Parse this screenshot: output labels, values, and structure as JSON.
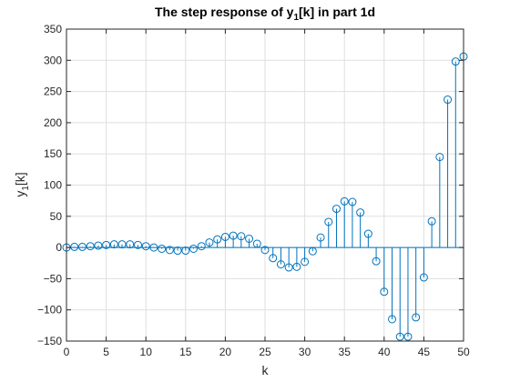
{
  "chart_data": {
    "type": "scatter",
    "subtype": "stem",
    "title": {
      "main": "The step response of y",
      "sub": "1",
      "rest": "[k] in part 1d"
    },
    "xlabel": "k",
    "ylabel": {
      "main": "y",
      "sub": "1",
      "rest": "[k]"
    },
    "xlim": [
      0,
      50
    ],
    "ylim": [
      -150,
      350
    ],
    "xticks": [
      0,
      5,
      10,
      15,
      20,
      25,
      30,
      35,
      40,
      45,
      50
    ],
    "yticks": [
      -150,
      -100,
      -50,
      0,
      50,
      100,
      150,
      200,
      250,
      300,
      350
    ],
    "grid": true,
    "color": "#0072BD",
    "series": [
      {
        "x": [
          0,
          1,
          2,
          3,
          4,
          5,
          6,
          7,
          8,
          9,
          10,
          11,
          12,
          13,
          14,
          15,
          16,
          17,
          18,
          19,
          20,
          21,
          22,
          23,
          24,
          25,
          26,
          27,
          28,
          29,
          30,
          31,
          32,
          33,
          34,
          35,
          36,
          37,
          38,
          39,
          40,
          41,
          42,
          43,
          44,
          45,
          46,
          47,
          48,
          49,
          50
        ],
        "values": [
          0,
          1,
          1,
          2,
          3,
          4,
          5,
          5,
          5,
          4,
          2,
          0,
          -2,
          -4,
          -5,
          -5,
          -2,
          2,
          8,
          13,
          17,
          19,
          18,
          14,
          6,
          -4,
          -17,
          -27,
          -32,
          -31,
          -23,
          -6,
          16,
          41,
          62,
          74,
          73,
          56,
          22,
          -22,
          -71,
          -115,
          -143,
          -143,
          -112,
          -48,
          42,
          145,
          237,
          298,
          306
        ]
      }
    ]
  }
}
